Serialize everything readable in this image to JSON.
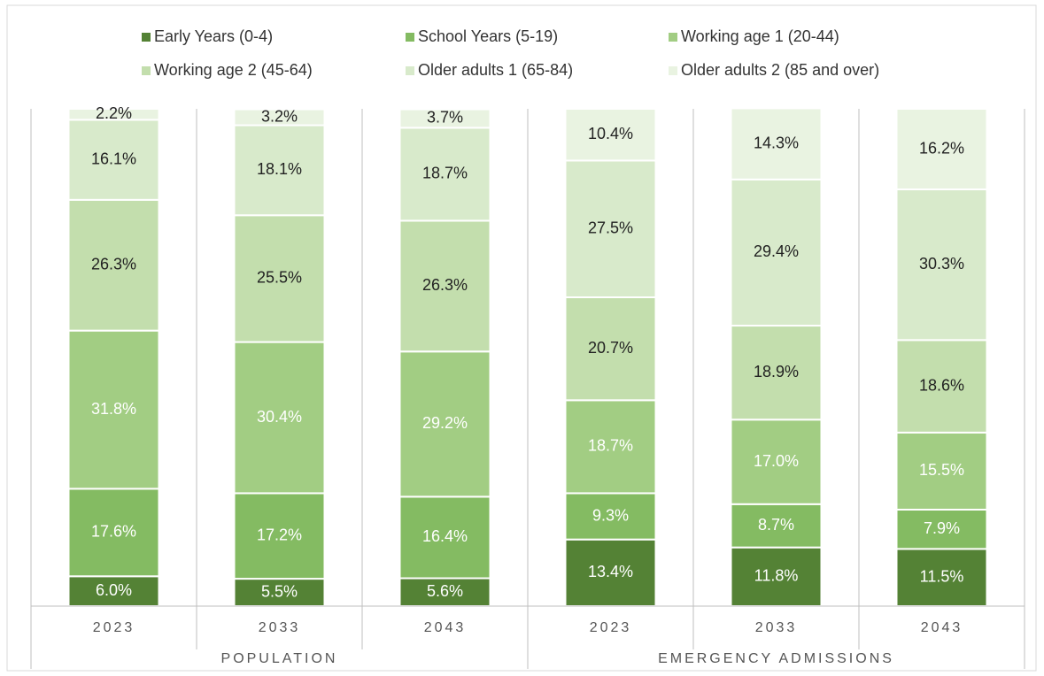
{
  "chart_data": {
    "type": "stacked_bar",
    "categories": [
      "2023",
      "2033",
      "2043",
      "2023",
      "2033",
      "2043"
    ],
    "groups": [
      {
        "label": "POPULATION",
        "size": 3
      },
      {
        "label": "EMERGENCY ADMISSIONS",
        "size": 3
      }
    ],
    "ylim": [
      0,
      100
    ],
    "series": [
      {
        "name": "Early Years (0-4)",
        "color": "#548235",
        "label_color": "#ffffff",
        "values": [
          6.0,
          5.5,
          5.6,
          13.4,
          11.8,
          11.5
        ],
        "value_labels": [
          "6.0%",
          "5.5%",
          "5.6%",
          "13.4%",
          "11.8%",
          "11.5%"
        ]
      },
      {
        "name": "School Years (5-19)",
        "color": "#84bb62",
        "label_color": "#ffffff",
        "values": [
          17.6,
          17.2,
          16.4,
          9.3,
          8.7,
          7.9
        ],
        "value_labels": [
          "17.6%",
          "17.2%",
          "16.4%",
          "9.3%",
          "8.7%",
          "7.9%"
        ]
      },
      {
        "name": "Working age 1 (20-44)",
        "color": "#a2cd83",
        "label_color": "#ffffff",
        "values": [
          31.8,
          30.4,
          29.2,
          18.7,
          17.0,
          15.5
        ],
        "value_labels": [
          "31.8%",
          "30.4%",
          "29.2%",
          "18.7%",
          "17.0%",
          "15.5%"
        ]
      },
      {
        "name": "Working age 2 (45-64)",
        "color": "#c3dead",
        "label_color": "#222222",
        "values": [
          26.3,
          25.5,
          26.3,
          20.7,
          18.9,
          18.6
        ],
        "value_labels": [
          "26.3%",
          "25.5%",
          "26.3%",
          "20.7%",
          "18.9%",
          "18.6%"
        ]
      },
      {
        "name": "Older adults 1 (65-84)",
        "color": "#d8eacb",
        "label_color": "#222222",
        "values": [
          16.1,
          18.1,
          18.7,
          27.5,
          29.4,
          30.3
        ],
        "value_labels": [
          "16.1%",
          "18.1%",
          "18.7%",
          "27.5%",
          "29.4%",
          "30.3%"
        ]
      },
      {
        "name": "Older adults 2 (85 and over)",
        "color": "#e9f3e1",
        "label_color": "#222222",
        "values": [
          2.2,
          3.2,
          3.7,
          10.4,
          14.3,
          16.2
        ],
        "value_labels": [
          "2.2%",
          "3.2%",
          "3.7%",
          "10.4%",
          "14.3%",
          "16.2%"
        ]
      }
    ]
  }
}
